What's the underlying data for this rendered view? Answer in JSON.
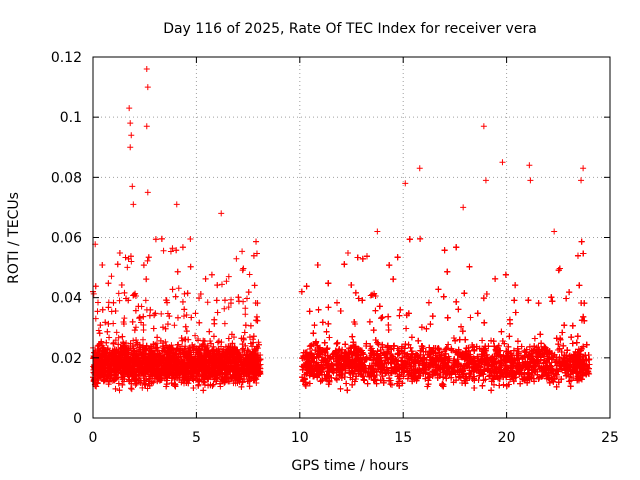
{
  "chart_data": {
    "type": "scatter",
    "title": "Day 116 of 2025, Rate Of TEC Index for receiver vera",
    "xlabel": "GPS time / hours",
    "ylabel": "ROTI / TECUs",
    "xlim": [
      0,
      25
    ],
    "ylim": [
      0,
      0.12
    ],
    "xticks": [
      0,
      5,
      10,
      15,
      20,
      25
    ],
    "xtick_labels": [
      "0",
      "5",
      "10",
      "15",
      "20",
      "25"
    ],
    "yticks": [
      0,
      0.02,
      0.04,
      0.06,
      0.08,
      0.1,
      0.12
    ],
    "ytick_labels": [
      "0",
      "0.02",
      "0.04",
      "0.06",
      "0.08",
      "0.1",
      "0.12"
    ],
    "grid": true,
    "marker": "+",
    "series": [
      {
        "name": "ROTI",
        "color": "#ff0000",
        "summary": {
          "time_coverage_hours": [
            [
              0.0,
              8.1
            ],
            [
              10.1,
              24.0
            ]
          ],
          "data_gap_hours": [
            8.1,
            10.1
          ],
          "typical_range": [
            0.005,
            0.035
          ],
          "dense_band_center": 0.018
        },
        "highlights": [
          {
            "x": 1.75,
            "y": 0.103
          },
          {
            "x": 1.8,
            "y": 0.098
          },
          {
            "x": 1.85,
            "y": 0.094
          },
          {
            "x": 1.8,
            "y": 0.09
          },
          {
            "x": 1.9,
            "y": 0.077
          },
          {
            "x": 1.95,
            "y": 0.071
          },
          {
            "x": 2.6,
            "y": 0.116
          },
          {
            "x": 2.65,
            "y": 0.11
          },
          {
            "x": 2.6,
            "y": 0.097
          },
          {
            "x": 2.65,
            "y": 0.075
          },
          {
            "x": 4.05,
            "y": 0.071
          },
          {
            "x": 6.2,
            "y": 0.068
          },
          {
            "x": 15.1,
            "y": 0.078
          },
          {
            "x": 15.8,
            "y": 0.083
          },
          {
            "x": 18.9,
            "y": 0.097
          },
          {
            "x": 19.0,
            "y": 0.079
          },
          {
            "x": 19.8,
            "y": 0.085
          },
          {
            "x": 21.1,
            "y": 0.084
          },
          {
            "x": 21.15,
            "y": 0.079
          },
          {
            "x": 23.7,
            "y": 0.083
          },
          {
            "x": 23.6,
            "y": 0.079
          },
          {
            "x": 13.75,
            "y": 0.062
          },
          {
            "x": 17.9,
            "y": 0.07
          },
          {
            "x": 22.3,
            "y": 0.062
          }
        ]
      }
    ]
  }
}
